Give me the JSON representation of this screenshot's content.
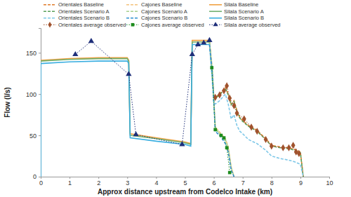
{
  "chart_data": {
    "type": "line",
    "x_label": "Approx distance upstream from Codelco Intake (km)",
    "y_label": "Flow (l/s)",
    "xlim": [
      0,
      10
    ],
    "xticks": [
      0,
      1,
      2,
      3,
      4,
      5,
      6,
      7,
      8,
      9,
      10
    ],
    "ylim": [
      0,
      180
    ],
    "yticks": [
      0,
      50,
      100,
      150
    ],
    "grid": false,
    "legend": "top-left",
    "series": [
      {
        "name": "Orientales Baseline",
        "color": "#e07b2a",
        "line_style": "dashed",
        "x": [
          5.85,
          6.0,
          6.05,
          6.2,
          6.3,
          6.4,
          6.5,
          6.6,
          6.7,
          6.8,
          6.9,
          7.0,
          7.2,
          7.5,
          7.8,
          8.0,
          8.3,
          8.6,
          8.8,
          9.0,
          9.1
        ],
        "values": [
          165,
          98,
          96,
          100,
          104,
          108,
          100,
          88,
          92,
          80,
          72,
          68,
          62,
          56,
          46,
          38,
          36,
          35,
          33,
          30,
          0
        ]
      },
      {
        "name": "Cajones Baseline",
        "color": "#f4c27a",
        "line_style": "dashed",
        "x": [
          5.85,
          5.95,
          6.05,
          6.25,
          6.4,
          6.5,
          6.6,
          6.7
        ],
        "values": [
          165,
          130,
          60,
          52,
          46,
          36,
          12,
          0
        ]
      },
      {
        "name": "Silala Baseline",
        "color": "#f0a040",
        "line_style": "solid",
        "x": [
          0,
          1,
          2,
          3,
          3.05,
          3.1,
          4,
          5,
          5.2,
          5.25,
          5.5,
          5.85
        ],
        "values": [
          141,
          143,
          144,
          144,
          141,
          52,
          47,
          42,
          40,
          165,
          165,
          165
        ]
      },
      {
        "name": "Orientales Scenario A",
        "color": "#5aa05a",
        "line_style": "dashed",
        "x": [
          5.85,
          6.0,
          6.05,
          6.2,
          6.3,
          6.4,
          6.5,
          6.6,
          6.7,
          6.8,
          6.9,
          7.0,
          7.2,
          7.5,
          7.8,
          8.0,
          8.3,
          8.6,
          8.8,
          9.0,
          9.1
        ],
        "values": [
          163,
          97,
          95,
          99,
          103,
          107,
          99,
          87,
          91,
          79,
          71,
          67,
          61,
          55,
          45,
          37,
          35,
          34,
          32,
          29,
          0
        ]
      },
      {
        "name": "Cajones Scenario A",
        "color": "#a8d08d",
        "line_style": "dashed",
        "x": [
          5.85,
          5.95,
          6.05,
          6.25,
          6.4,
          6.5,
          6.6,
          6.7
        ],
        "values": [
          163,
          128,
          59,
          51,
          45,
          35,
          11,
          0
        ]
      },
      {
        "name": "Silala Scenario A",
        "color": "#70b070",
        "line_style": "solid",
        "x": [
          0,
          1,
          2,
          3,
          3.05,
          3.1,
          4,
          5,
          5.2,
          5.25,
          5.5,
          5.85
        ],
        "values": [
          140,
          142,
          143,
          143,
          140,
          50,
          46,
          41,
          39,
          163,
          163,
          163
        ]
      },
      {
        "name": "Orientales Scenario B",
        "color": "#7fc8e8",
        "line_style": "dashed",
        "x": [
          5.85,
          6.0,
          6.05,
          6.2,
          6.3,
          6.4,
          6.5,
          6.6,
          6.7,
          6.8,
          6.9,
          7.0,
          7.2,
          7.5,
          7.8,
          8.0,
          8.3,
          8.6,
          8.8,
          9.0,
          9.1
        ],
        "values": [
          160,
          90,
          88,
          92,
          96,
          100,
          88,
          70,
          75,
          62,
          55,
          52,
          45,
          40,
          32,
          25,
          22,
          20,
          18,
          15,
          0
        ]
      },
      {
        "name": "Cajones Scenario B",
        "color": "#2e8fd0",
        "line_style": "dashed",
        "x": [
          5.85,
          5.95,
          6.05,
          6.25,
          6.4,
          6.5,
          6.6,
          6.7
        ],
        "values": [
          160,
          125,
          55,
          48,
          40,
          30,
          8,
          0
        ]
      },
      {
        "name": "Silala Scenario B",
        "color": "#3aaee0",
        "line_style": "solid",
        "x": [
          0,
          0,
          1,
          2,
          3,
          3.05,
          3.1,
          4,
          5,
          5.2,
          5.25,
          5.5,
          5.85
        ],
        "values": [
          0,
          137,
          139,
          140,
          140,
          137,
          47,
          43,
          39,
          37,
          160,
          160,
          160
        ]
      },
      {
        "name": "Orientales average observed",
        "color": "#a0522d",
        "line_style": "dotted",
        "marker": "diamond",
        "x": [
          6.05,
          6.2,
          6.35,
          6.45,
          6.55,
          6.7,
          6.8,
          7.05,
          7.3,
          7.5,
          7.8,
          8.0,
          8.4,
          8.6,
          8.75,
          8.85,
          8.95
        ],
        "values": [
          96,
          99,
          104,
          110,
          95,
          86,
          77,
          70,
          60,
          55,
          45,
          37,
          35,
          35,
          38,
          30,
          28
        ]
      },
      {
        "name": "Cajones average observed",
        "color": "#1e8c1e",
        "line_style": "dotted",
        "marker": "square",
        "x": [
          5.93,
          6.05,
          6.25,
          6.35,
          6.45,
          6.55
        ],
        "values": [
          132,
          57,
          50,
          47,
          35,
          5
        ]
      },
      {
        "name": "Silala average observed",
        "color": "#1f2f7a",
        "line_style": "dotted",
        "marker": "triangle",
        "x": [
          1.2,
          1.75,
          3.05,
          3.3,
          4.9,
          5.25,
          5.45,
          5.65,
          5.85
        ],
        "values": [
          148,
          164,
          124,
          51,
          39,
          148,
          160,
          162,
          165
        ]
      }
    ]
  }
}
